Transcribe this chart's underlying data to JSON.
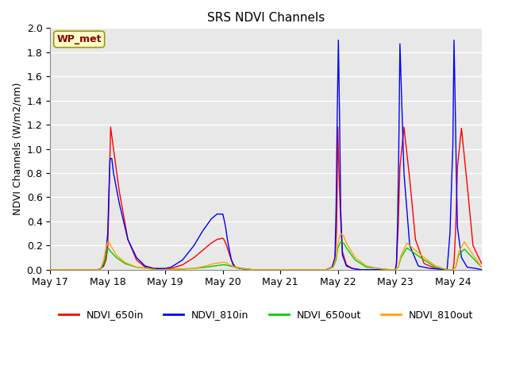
{
  "title": "SRS NDVI Channels",
  "ylabel": "NDVI Channels (W/m2/nm)",
  "annotation_text": "WP_met",
  "annotation_color": "#8B0000",
  "annotation_bg": "#FFFFCC",
  "annotation_edge": "#999900",
  "ylim": [
    0.0,
    2.0
  ],
  "yticks": [
    0.0,
    0.2,
    0.4,
    0.6,
    0.8,
    1.0,
    1.2,
    1.4,
    1.6,
    1.8,
    2.0
  ],
  "xtick_labels": [
    "May 17",
    "May 18",
    "May 19",
    "May 20",
    "May 21",
    "May 22",
    "May 23",
    "May 24"
  ],
  "xlim": [
    17.0,
    24.5
  ],
  "background_color": "#E8E8E8",
  "grid_color": "#FFFFFF",
  "line_colors": {
    "NDVI_650in": "#FF0000",
    "NDVI_810in": "#0000FF",
    "NDVI_650out": "#00CC00",
    "NDVI_810out": "#FFA500"
  },
  "line_width": 1.0,
  "series": {
    "NDVI_650in": {
      "x": [
        17.0,
        17.83,
        17.88,
        17.93,
        17.97,
        18.0,
        18.02,
        18.05,
        18.1,
        18.2,
        18.35,
        18.5,
        18.65,
        18.8,
        19.0,
        19.1,
        19.3,
        19.5,
        19.65,
        19.8,
        19.9,
        20.0,
        20.02,
        20.05,
        20.08,
        20.12,
        20.15,
        20.18,
        20.22,
        20.3,
        20.5,
        20.7,
        20.9,
        21.0,
        21.5,
        21.8,
        21.9,
        21.95,
        21.98,
        22.0,
        22.02,
        22.05,
        22.08,
        22.15,
        22.25,
        22.35,
        22.5,
        22.7,
        22.9,
        23.0,
        23.02,
        23.05,
        23.08,
        23.15,
        23.25,
        23.35,
        23.5,
        23.7,
        23.9,
        24.0,
        24.02,
        24.05,
        24.08,
        24.15,
        24.25,
        24.35,
        24.5
      ],
      "y": [
        0.0,
        0.0,
        0.01,
        0.03,
        0.08,
        0.18,
        0.55,
        1.18,
        1.0,
        0.65,
        0.25,
        0.08,
        0.02,
        0.01,
        0.0,
        0.01,
        0.04,
        0.1,
        0.16,
        0.22,
        0.25,
        0.26,
        0.25,
        0.22,
        0.18,
        0.12,
        0.08,
        0.05,
        0.02,
        0.01,
        0.0,
        0.0,
        0.0,
        0.0,
        0.0,
        0.0,
        0.02,
        0.08,
        0.35,
        1.18,
        0.8,
        0.4,
        0.15,
        0.04,
        0.01,
        0.0,
        0.0,
        0.0,
        0.0,
        0.0,
        0.05,
        0.35,
        0.85,
        1.18,
        0.75,
        0.25,
        0.05,
        0.01,
        0.0,
        0.0,
        0.05,
        0.35,
        0.85,
        1.17,
        0.7,
        0.2,
        0.05
      ]
    },
    "NDVI_810in": {
      "x": [
        17.0,
        17.83,
        17.88,
        17.92,
        17.96,
        18.0,
        18.02,
        18.04,
        18.07,
        18.1,
        18.2,
        18.35,
        18.5,
        18.65,
        18.8,
        19.0,
        19.1,
        19.3,
        19.5,
        19.65,
        19.8,
        19.9,
        20.0,
        20.02,
        20.05,
        20.08,
        20.12,
        20.15,
        20.18,
        20.22,
        20.3,
        20.5,
        20.7,
        20.9,
        21.0,
        21.5,
        21.8,
        21.9,
        21.95,
        21.97,
        21.99,
        22.01,
        22.03,
        22.05,
        22.08,
        22.15,
        22.25,
        22.4,
        22.6,
        22.9,
        23.0,
        23.02,
        23.04,
        23.06,
        23.08,
        23.15,
        23.25,
        23.4,
        23.6,
        23.9,
        23.95,
        23.98,
        24.0,
        24.02,
        24.04,
        24.06,
        24.08,
        24.15,
        24.25,
        24.4,
        24.5
      ],
      "y": [
        0.0,
        0.0,
        0.01,
        0.03,
        0.1,
        0.3,
        0.65,
        0.92,
        0.92,
        0.8,
        0.55,
        0.25,
        0.1,
        0.03,
        0.01,
        0.01,
        0.02,
        0.08,
        0.2,
        0.32,
        0.42,
        0.46,
        0.46,
        0.42,
        0.35,
        0.25,
        0.15,
        0.08,
        0.04,
        0.02,
        0.01,
        0.0,
        0.0,
        0.0,
        0.0,
        0.0,
        0.0,
        0.02,
        0.1,
        0.5,
        1.28,
        1.9,
        1.28,
        0.5,
        0.12,
        0.03,
        0.01,
        0.0,
        0.0,
        0.0,
        0.0,
        0.05,
        0.4,
        1.0,
        1.87,
        0.8,
        0.2,
        0.03,
        0.01,
        0.0,
        0.3,
        0.75,
        1.02,
        1.9,
        1.4,
        0.8,
        0.35,
        0.1,
        0.02,
        0.01,
        0.0
      ]
    },
    "NDVI_650out": {
      "x": [
        17.0,
        17.83,
        17.88,
        17.93,
        17.97,
        18.0,
        18.02,
        18.05,
        18.15,
        18.3,
        18.5,
        18.7,
        18.85,
        19.0,
        19.5,
        19.7,
        19.85,
        20.0,
        20.05,
        20.12,
        20.22,
        20.35,
        20.5,
        20.7,
        20.9,
        21.0,
        21.5,
        21.8,
        21.92,
        21.97,
        22.0,
        22.05,
        22.1,
        22.15,
        22.3,
        22.5,
        22.7,
        22.9,
        23.0,
        23.05,
        23.1,
        23.2,
        23.5,
        23.7,
        23.9,
        24.0,
        24.05,
        24.1,
        24.2,
        24.5
      ],
      "y": [
        0.0,
        0.0,
        0.01,
        0.05,
        0.12,
        0.17,
        0.17,
        0.15,
        0.1,
        0.05,
        0.02,
        0.01,
        0.0,
        0.0,
        0.01,
        0.02,
        0.03,
        0.04,
        0.04,
        0.03,
        0.02,
        0.01,
        0.0,
        0.0,
        0.0,
        0.0,
        0.0,
        0.0,
        0.02,
        0.08,
        0.18,
        0.23,
        0.22,
        0.18,
        0.08,
        0.02,
        0.01,
        0.0,
        0.0,
        0.02,
        0.1,
        0.18,
        0.08,
        0.02,
        0.0,
        0.0,
        0.02,
        0.12,
        0.17,
        0.02
      ]
    },
    "NDVI_810out": {
      "x": [
        17.0,
        17.83,
        17.88,
        17.93,
        17.97,
        18.0,
        18.02,
        18.05,
        18.15,
        18.3,
        18.5,
        18.7,
        18.85,
        19.0,
        19.5,
        19.7,
        19.85,
        20.0,
        20.05,
        20.12,
        20.22,
        20.35,
        20.5,
        20.7,
        20.9,
        21.0,
        21.5,
        21.8,
        21.92,
        21.97,
        22.0,
        22.05,
        22.1,
        22.15,
        22.3,
        22.5,
        22.7,
        22.9,
        23.0,
        23.05,
        23.1,
        23.2,
        23.5,
        23.7,
        23.9,
        24.0,
        24.05,
        24.1,
        24.2,
        24.5
      ],
      "y": [
        0.0,
        0.0,
        0.01,
        0.08,
        0.18,
        0.23,
        0.23,
        0.2,
        0.12,
        0.06,
        0.02,
        0.01,
        0.0,
        0.0,
        0.01,
        0.03,
        0.05,
        0.06,
        0.06,
        0.04,
        0.02,
        0.01,
        0.0,
        0.0,
        0.0,
        0.0,
        0.0,
        0.0,
        0.02,
        0.1,
        0.22,
        0.3,
        0.28,
        0.22,
        0.1,
        0.03,
        0.01,
        0.0,
        0.0,
        0.02,
        0.12,
        0.22,
        0.1,
        0.03,
        0.0,
        0.0,
        0.02,
        0.14,
        0.23,
        0.02
      ]
    }
  }
}
